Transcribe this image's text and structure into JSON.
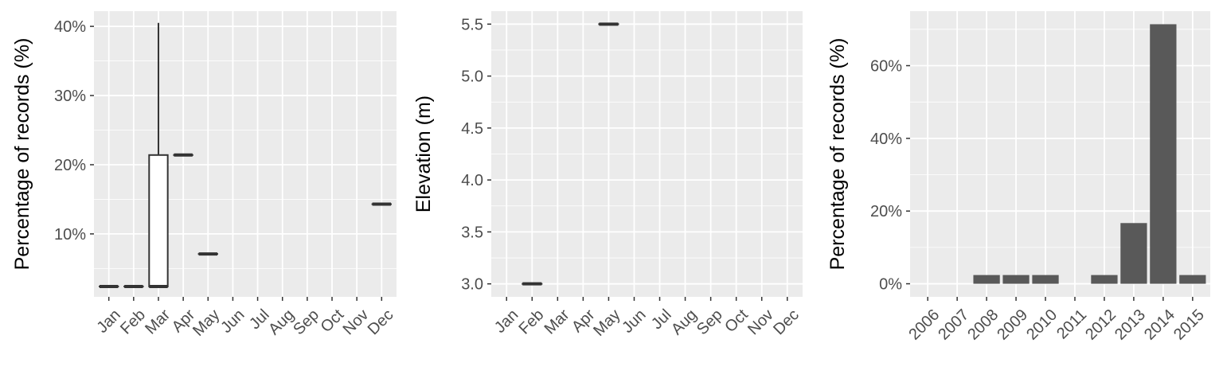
{
  "chart_data": [
    {
      "type": "boxplot",
      "ylabel": "Percentage of records (%)",
      "categories": [
        "Jan",
        "Feb",
        "Mar",
        "Apr",
        "May",
        "Jun",
        "Jul",
        "Aug",
        "Sep",
        "Oct",
        "Nov",
        "Dec"
      ],
      "y_ticks": [
        "10%",
        "20%",
        "30%",
        "40%"
      ],
      "y_tick_values": [
        10,
        20,
        30,
        40
      ],
      "ylim": [
        0.9,
        42.2
      ],
      "boxes": [
        {
          "category": "Jan",
          "min": 2.4,
          "q1": 2.4,
          "median": 2.4,
          "q3": 2.4,
          "max": 2.4
        },
        {
          "category": "Feb",
          "min": 2.4,
          "q1": 2.4,
          "median": 2.4,
          "q3": 2.4,
          "max": 2.4
        },
        {
          "category": "Mar",
          "min": 2.4,
          "q1": 2.4,
          "median": 2.4,
          "q3": 21.4,
          "max": 40.5
        },
        {
          "category": "Apr",
          "min": 21.4,
          "q1": 21.4,
          "median": 21.4,
          "q3": 21.4,
          "max": 21.4
        },
        {
          "category": "May",
          "min": 7.1,
          "q1": 7.1,
          "median": 7.1,
          "q3": 7.1,
          "max": 7.1
        },
        {
          "category": "Dec",
          "min": 14.3,
          "q1": 14.3,
          "median": 14.3,
          "q3": 14.3,
          "max": 14.3
        }
      ]
    },
    {
      "type": "boxplot",
      "ylabel": "Elevation (m)",
      "categories": [
        "Jan",
        "Feb",
        "Mar",
        "Apr",
        "May",
        "Jun",
        "Jul",
        "Aug",
        "Sep",
        "Oct",
        "Nov",
        "Dec"
      ],
      "y_ticks": [
        "3.0",
        "3.5",
        "4.0",
        "4.5",
        "5.0",
        "5.5"
      ],
      "y_tick_values": [
        3.0,
        3.5,
        4.0,
        4.5,
        5.0,
        5.5
      ],
      "ylim": [
        2.875,
        5.625
      ],
      "boxes": [
        {
          "category": "Feb",
          "min": 3.0,
          "q1": 3.0,
          "median": 3.0,
          "q3": 3.0,
          "max": 3.0
        },
        {
          "category": "May",
          "min": 5.5,
          "q1": 5.5,
          "median": 5.5,
          "q3": 5.5,
          "max": 5.5
        }
      ]
    },
    {
      "type": "bar",
      "ylabel": "Percentage of records (%)",
      "categories": [
        "2006",
        "2007",
        "2008",
        "2009",
        "2010",
        "2011",
        "2012",
        "2013",
        "2014",
        "2015"
      ],
      "values": [
        0,
        0,
        2.4,
        2.4,
        2.4,
        0,
        2.4,
        16.7,
        71.4,
        2.4
      ],
      "y_ticks": [
        "0%",
        "20%",
        "40%",
        "60%"
      ],
      "y_tick_values": [
        0,
        20,
        40,
        60
      ],
      "ylim": [
        -3.6,
        75.0
      ]
    }
  ],
  "colors": {
    "panel_background": "#ebebeb",
    "grid": "#ffffff",
    "bar_fill": "#595959",
    "box_line": "#333333",
    "box_fill": "#ffffff",
    "tick_text": "#4d4d4d",
    "axis_title": "#000000"
  }
}
